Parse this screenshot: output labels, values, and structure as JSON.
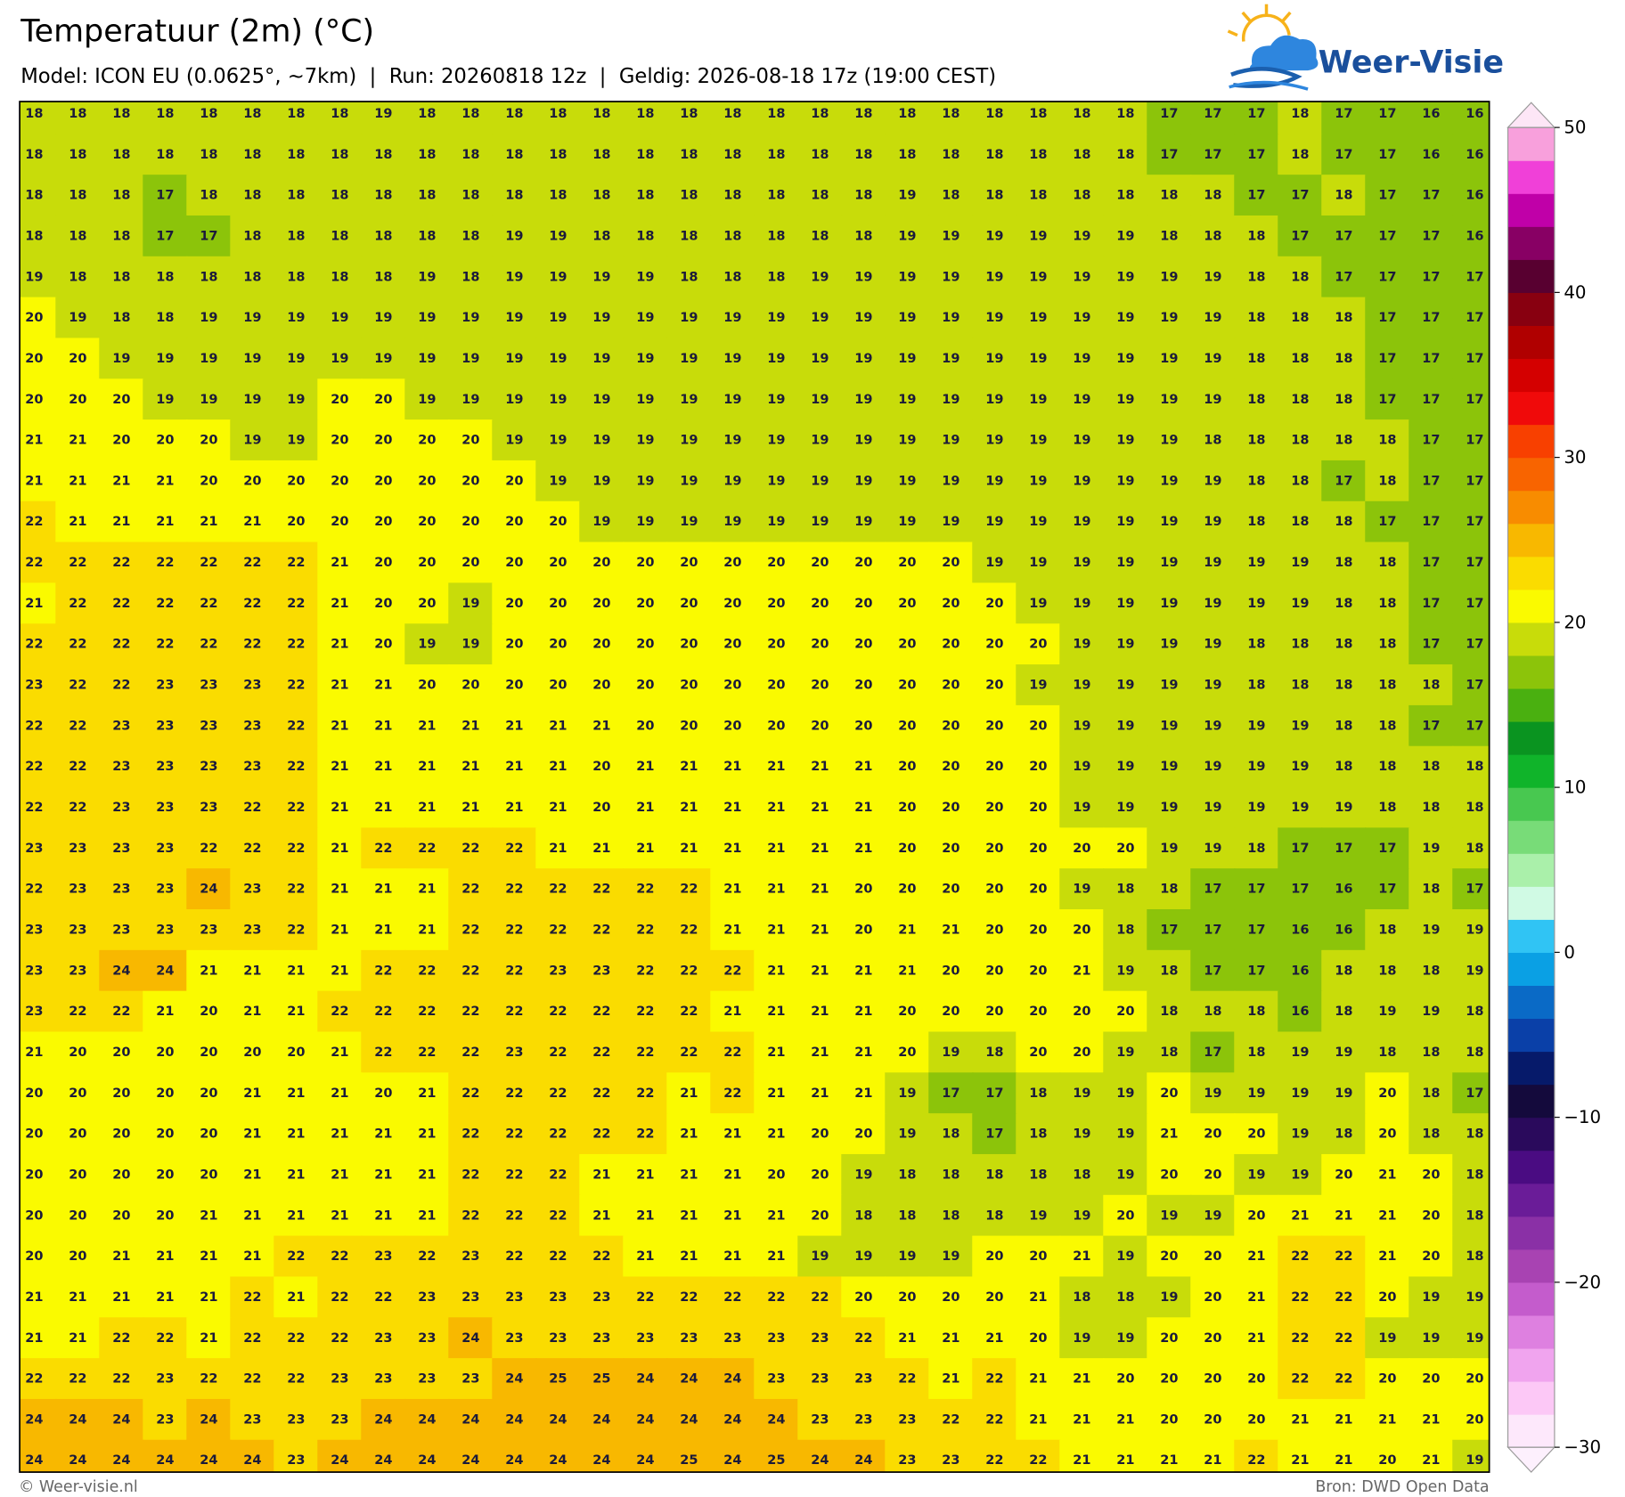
{
  "header": {
    "title": "Temperatuur (2m) (°C)",
    "subtitle": "Model: ICON EU (0.0625°, ~7km)  |  Run: 20260818 12z  |  Geldig: 2026-08-18 17z (19:00 CEST)"
  },
  "logo": {
    "text": "Weer-Visie"
  },
  "map": {
    "grid": [
      [
        18,
        18,
        18,
        18,
        18,
        18,
        18,
        18,
        19,
        18,
        18,
        18,
        18,
        18,
        18,
        18,
        18,
        18,
        18,
        18,
        18,
        18,
        18,
        18,
        18,
        18,
        17,
        17,
        17,
        18,
        17,
        17,
        16,
        16
      ],
      [
        18,
        18,
        18,
        18,
        18,
        18,
        18,
        18,
        18,
        18,
        18,
        18,
        18,
        18,
        18,
        18,
        18,
        18,
        18,
        18,
        18,
        18,
        18,
        18,
        18,
        18,
        17,
        17,
        17,
        18,
        17,
        17,
        16,
        16
      ],
      [
        18,
        18,
        18,
        17,
        18,
        18,
        18,
        18,
        18,
        18,
        18,
        18,
        18,
        18,
        18,
        18,
        18,
        18,
        18,
        18,
        19,
        18,
        18,
        18,
        18,
        18,
        18,
        18,
        17,
        17,
        18,
        17,
        17,
        16
      ],
      [
        18,
        18,
        18,
        17,
        17,
        18,
        18,
        18,
        18,
        18,
        18,
        19,
        19,
        18,
        18,
        18,
        18,
        18,
        18,
        18,
        19,
        19,
        19,
        19,
        19,
        19,
        18,
        18,
        18,
        17,
        17,
        17,
        17,
        16
      ],
      [
        19,
        18,
        18,
        18,
        18,
        18,
        18,
        18,
        18,
        19,
        18,
        19,
        19,
        19,
        19,
        18,
        18,
        18,
        19,
        19,
        19,
        19,
        19,
        19,
        19,
        19,
        19,
        19,
        18,
        18,
        17,
        17,
        17,
        17
      ],
      [
        20,
        19,
        18,
        18,
        19,
        19,
        19,
        19,
        19,
        19,
        19,
        19,
        19,
        19,
        19,
        19,
        19,
        19,
        19,
        19,
        19,
        19,
        19,
        19,
        19,
        19,
        19,
        19,
        18,
        18,
        18,
        17,
        17,
        17
      ],
      [
        20,
        20,
        19,
        19,
        19,
        19,
        19,
        19,
        19,
        19,
        19,
        19,
        19,
        19,
        19,
        19,
        19,
        19,
        19,
        19,
        19,
        19,
        19,
        19,
        19,
        19,
        19,
        19,
        18,
        18,
        18,
        17,
        17,
        17
      ],
      [
        20,
        20,
        20,
        19,
        19,
        19,
        19,
        20,
        20,
        19,
        19,
        19,
        19,
        19,
        19,
        19,
        19,
        19,
        19,
        19,
        19,
        19,
        19,
        19,
        19,
        19,
        19,
        19,
        18,
        18,
        18,
        17,
        17,
        17
      ],
      [
        21,
        21,
        20,
        20,
        20,
        19,
        19,
        20,
        20,
        20,
        20,
        19,
        19,
        19,
        19,
        19,
        19,
        19,
        19,
        19,
        19,
        19,
        19,
        19,
        19,
        19,
        19,
        18,
        18,
        18,
        18,
        18,
        17,
        17
      ],
      [
        21,
        21,
        21,
        21,
        20,
        20,
        20,
        20,
        20,
        20,
        20,
        20,
        19,
        19,
        19,
        19,
        19,
        19,
        19,
        19,
        19,
        19,
        19,
        19,
        19,
        19,
        19,
        19,
        18,
        18,
        17,
        18,
        17,
        17
      ],
      [
        22,
        21,
        21,
        21,
        21,
        21,
        20,
        20,
        20,
        20,
        20,
        20,
        20,
        19,
        19,
        19,
        19,
        19,
        19,
        19,
        19,
        19,
        19,
        19,
        19,
        19,
        19,
        19,
        18,
        18,
        18,
        17,
        17,
        17
      ],
      [
        22,
        22,
        22,
        22,
        22,
        22,
        22,
        21,
        20,
        20,
        20,
        20,
        20,
        20,
        20,
        20,
        20,
        20,
        20,
        20,
        20,
        20,
        19,
        19,
        19,
        19,
        19,
        19,
        19,
        19,
        18,
        18,
        17,
        17
      ],
      [
        21,
        22,
        22,
        22,
        22,
        22,
        22,
        21,
        20,
        20,
        19,
        20,
        20,
        20,
        20,
        20,
        20,
        20,
        20,
        20,
        20,
        20,
        20,
        19,
        19,
        19,
        19,
        19,
        19,
        19,
        18,
        18,
        17,
        17
      ],
      [
        22,
        22,
        22,
        22,
        22,
        22,
        22,
        21,
        20,
        19,
        19,
        20,
        20,
        20,
        20,
        20,
        20,
        20,
        20,
        20,
        20,
        20,
        20,
        20,
        19,
        19,
        19,
        19,
        18,
        18,
        18,
        18,
        17,
        17
      ],
      [
        23,
        22,
        22,
        23,
        23,
        23,
        22,
        21,
        21,
        20,
        20,
        20,
        20,
        20,
        20,
        20,
        20,
        20,
        20,
        20,
        20,
        20,
        20,
        19,
        19,
        19,
        19,
        19,
        18,
        18,
        18,
        18,
        18,
        17
      ],
      [
        22,
        22,
        23,
        23,
        23,
        23,
        22,
        21,
        21,
        21,
        21,
        21,
        21,
        21,
        20,
        20,
        20,
        20,
        20,
        20,
        20,
        20,
        20,
        20,
        19,
        19,
        19,
        19,
        19,
        19,
        18,
        18,
        17,
        17
      ],
      [
        22,
        22,
        23,
        23,
        23,
        23,
        22,
        21,
        21,
        21,
        21,
        21,
        21,
        20,
        21,
        21,
        21,
        21,
        21,
        21,
        20,
        20,
        20,
        20,
        19,
        19,
        19,
        19,
        19,
        19,
        18,
        18,
        18,
        18
      ],
      [
        22,
        22,
        23,
        23,
        23,
        22,
        22,
        21,
        21,
        21,
        21,
        21,
        21,
        20,
        21,
        21,
        21,
        21,
        21,
        21,
        20,
        20,
        20,
        20,
        19,
        19,
        19,
        19,
        19,
        19,
        19,
        18,
        18,
        18
      ],
      [
        23,
        23,
        23,
        23,
        22,
        22,
        22,
        21,
        22,
        22,
        22,
        22,
        21,
        21,
        21,
        21,
        21,
        21,
        21,
        21,
        20,
        20,
        20,
        20,
        20,
        20,
        19,
        19,
        18,
        17,
        17,
        17,
        19,
        18
      ],
      [
        22,
        23,
        23,
        23,
        24,
        23,
        22,
        21,
        21,
        21,
        22,
        22,
        22,
        22,
        22,
        22,
        21,
        21,
        21,
        20,
        20,
        20,
        20,
        20,
        19,
        18,
        18,
        17,
        17,
        17,
        16,
        17,
        18,
        17
      ],
      [
        23,
        23,
        23,
        23,
        23,
        23,
        22,
        21,
        21,
        21,
        22,
        22,
        22,
        22,
        22,
        22,
        21,
        21,
        21,
        20,
        21,
        21,
        20,
        20,
        20,
        18,
        17,
        17,
        17,
        16,
        16,
        18,
        19,
        19
      ],
      [
        23,
        23,
        24,
        24,
        21,
        21,
        21,
        21,
        22,
        22,
        22,
        22,
        23,
        23,
        22,
        22,
        22,
        21,
        21,
        21,
        21,
        20,
        20,
        20,
        21,
        19,
        18,
        17,
        17,
        16,
        18,
        18,
        18,
        19
      ],
      [
        23,
        22,
        22,
        21,
        20,
        21,
        21,
        22,
        22,
        22,
        22,
        22,
        22,
        22,
        22,
        22,
        21,
        21,
        21,
        21,
        20,
        20,
        20,
        20,
        20,
        20,
        18,
        18,
        18,
        16,
        18,
        19,
        19,
        18
      ],
      [
        21,
        20,
        20,
        20,
        20,
        20,
        20,
        21,
        22,
        22,
        22,
        23,
        22,
        22,
        22,
        22,
        22,
        21,
        21,
        21,
        20,
        19,
        18,
        20,
        20,
        19,
        18,
        17,
        18,
        19,
        19,
        18,
        18,
        18
      ],
      [
        20,
        20,
        20,
        20,
        20,
        21,
        21,
        21,
        20,
        21,
        22,
        22,
        22,
        22,
        22,
        21,
        22,
        21,
        21,
        21,
        19,
        17,
        17,
        18,
        19,
        19,
        20,
        19,
        19,
        19,
        19,
        20,
        18,
        17
      ],
      [
        20,
        20,
        20,
        20,
        20,
        21,
        21,
        21,
        21,
        21,
        22,
        22,
        22,
        22,
        22,
        21,
        21,
        21,
        20,
        20,
        19,
        18,
        17,
        18,
        19,
        19,
        21,
        20,
        20,
        19,
        18,
        20,
        18,
        18
      ],
      [
        20,
        20,
        20,
        20,
        20,
        21,
        21,
        21,
        21,
        21,
        22,
        22,
        22,
        21,
        21,
        21,
        21,
        20,
        20,
        19,
        18,
        18,
        18,
        18,
        18,
        19,
        20,
        20,
        19,
        19,
        20,
        21,
        20,
        18
      ],
      [
        20,
        20,
        20,
        20,
        21,
        21,
        21,
        21,
        21,
        21,
        22,
        22,
        22,
        21,
        21,
        21,
        21,
        21,
        20,
        18,
        18,
        18,
        18,
        19,
        19,
        20,
        19,
        19,
        20,
        21,
        21,
        21,
        20,
        18
      ],
      [
        20,
        20,
        21,
        21,
        21,
        21,
        22,
        22,
        23,
        22,
        23,
        22,
        22,
        22,
        21,
        21,
        21,
        21,
        19,
        19,
        19,
        19,
        20,
        20,
        21,
        19,
        20,
        20,
        21,
        22,
        22,
        21,
        20,
        18
      ],
      [
        21,
        21,
        21,
        21,
        21,
        22,
        21,
        22,
        22,
        23,
        23,
        23,
        23,
        23,
        22,
        22,
        22,
        22,
        22,
        20,
        20,
        20,
        20,
        21,
        18,
        18,
        19,
        20,
        21,
        22,
        22,
        20,
        19,
        19
      ],
      [
        21,
        21,
        22,
        22,
        21,
        22,
        22,
        22,
        23,
        23,
        24,
        23,
        23,
        23,
        23,
        23,
        23,
        23,
        23,
        22,
        21,
        21,
        21,
        20,
        19,
        19,
        20,
        20,
        21,
        22,
        22,
        19,
        19,
        19
      ],
      [
        22,
        22,
        22,
        23,
        22,
        22,
        22,
        23,
        23,
        23,
        23,
        24,
        25,
        25,
        24,
        24,
        24,
        23,
        23,
        23,
        22,
        21,
        22,
        21,
        21,
        20,
        20,
        20,
        20,
        22,
        22,
        20,
        20,
        20
      ],
      [
        24,
        24,
        24,
        23,
        24,
        23,
        23,
        23,
        24,
        24,
        24,
        24,
        24,
        24,
        24,
        24,
        24,
        24,
        23,
        23,
        23,
        22,
        22,
        21,
        21,
        21,
        20,
        20,
        20,
        21,
        21,
        21,
        21,
        20
      ],
      [
        24,
        24,
        24,
        24,
        24,
        24,
        23,
        24,
        24,
        24,
        24,
        24,
        24,
        24,
        24,
        25,
        24,
        25,
        24,
        24,
        23,
        23,
        22,
        22,
        21,
        21,
        21,
        21,
        22,
        21,
        21,
        20,
        21,
        19
      ]
    ]
  },
  "colorbar": {
    "lim": [
      -30,
      50
    ],
    "colors": [
      "#fde8fb",
      "#fcc8f6",
      "#f0a4ee",
      "#de80e0",
      "#c45ccc",
      "#a843b2",
      "#8a30a6",
      "#6a1c98",
      "#4a0c82",
      "#2a0a5c",
      "#140a3c",
      "#061a6a",
      "#0a40a8",
      "#0a6ac6",
      "#0aa0e4",
      "#30c4f4",
      "#d0fae4",
      "#aaf0aa",
      "#78dc78",
      "#48c850",
      "#10b42a",
      "#0a9420",
      "#4ab010",
      "#8cc40a",
      "#c8dc0a",
      "#fafa00",
      "#fadc00",
      "#f8b800",
      "#f88c00",
      "#f86400",
      "#f84000",
      "#f00a0a",
      "#d40000",
      "#b00000",
      "#880010",
      "#580030",
      "#880064",
      "#c000a8",
      "#f040d8",
      "#f8a0dc"
    ],
    "under_color": "#fdf0fd",
    "over_color": "#fde6f6",
    "ticks": [
      {
        "value": -30,
        "label": "−30"
      },
      {
        "value": -20,
        "label": "−20"
      },
      {
        "value": -10,
        "label": "−10"
      },
      0,
      10,
      20,
      30,
      40,
      50
    ]
  },
  "footer": {
    "left": "© Weer-visie.nl",
    "right": "Bron: DWD Open Data"
  }
}
